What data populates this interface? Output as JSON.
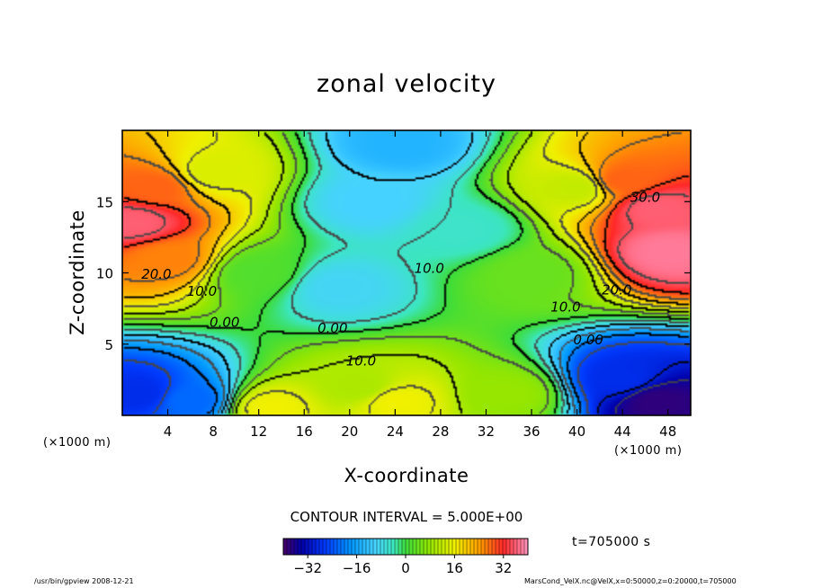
{
  "chart_data": {
    "type": "heatmap",
    "title": "zonal velocity",
    "xlabel": "X-coordinate",
    "ylabel": "Z-coordinate",
    "x_unit_label": "(×1000 m)",
    "z_unit_label": "(×1000 m)",
    "xlim": [
      0,
      50
    ],
    "ylim": [
      0,
      20
    ],
    "x_ticks": [
      "4",
      "8",
      "12",
      "16",
      "20",
      "24",
      "28",
      "32",
      "36",
      "40",
      "44",
      "48"
    ],
    "y_ticks": [
      "5",
      "10",
      "15"
    ],
    "contour_interval_text": "CONTOUR INTERVAL = 5.000E+00",
    "contour_labels": [
      {
        "text": "20.0",
        "x": 3.0,
        "z": 9.6
      },
      {
        "text": "10.0",
        "x": 7.0,
        "z": 8.4
      },
      {
        "text": "0.00",
        "x": 9.0,
        "z": 6.2
      },
      {
        "text": "0.00",
        "x": 18.5,
        "z": 5.8
      },
      {
        "text": "10.0",
        "x": 21.0,
        "z": 3.5
      },
      {
        "text": "10.0",
        "x": 27.0,
        "z": 10.0
      },
      {
        "text": "30.0",
        "x": 46.0,
        "z": 15.0
      },
      {
        "text": "20.0",
        "x": 43.5,
        "z": 8.5
      },
      {
        "text": "10.0",
        "x": 39.0,
        "z": 7.3
      },
      {
        "text": "0.00",
        "x": 41.0,
        "z": 5.0
      }
    ],
    "colorbar": {
      "range": [
        -40,
        40
      ],
      "tick_labels": [
        "−32",
        "−16",
        "0",
        "16",
        "32"
      ],
      "tick_values": [
        -32,
        -16,
        0,
        16,
        32
      ]
    },
    "field_centers": [
      {
        "x": 1,
        "z": 13.5,
        "value": 36
      },
      {
        "x": 3,
        "z": 16,
        "value": 28
      },
      {
        "x": 4,
        "z": 11,
        "value": 26
      },
      {
        "x": 48,
        "z": 11.5,
        "value": 38
      },
      {
        "x": 47,
        "z": 14.5,
        "value": 36
      },
      {
        "x": 44,
        "z": 16.5,
        "value": 28
      },
      {
        "x": 24.5,
        "z": 19,
        "value": -14
      },
      {
        "x": 22,
        "z": 15,
        "value": -10
      },
      {
        "x": 19,
        "z": 9,
        "value": -9
      },
      {
        "x": 30,
        "z": 13,
        "value": -5
      },
      {
        "x": 1.5,
        "z": 1.5,
        "value": -28
      },
      {
        "x": 6,
        "z": 1,
        "value": -22
      },
      {
        "x": 47,
        "z": 1,
        "value": -38
      },
      {
        "x": 44,
        "z": 2.5,
        "value": -28
      },
      {
        "x": 24,
        "z": 1,
        "value": 16
      },
      {
        "x": 21,
        "z": 2,
        "value": 10
      },
      {
        "x": 13,
        "z": 0.5,
        "value": 16
      },
      {
        "x": 34,
        "z": 1.5,
        "value": 8
      },
      {
        "x": 12,
        "z": 10,
        "value": 2
      },
      {
        "x": 36,
        "z": 10,
        "value": 4
      },
      {
        "x": 8,
        "z": 17,
        "value": 14
      },
      {
        "x": 40,
        "z": 16,
        "value": 12
      }
    ],
    "time_label": "t=705000 s"
  },
  "footer": {
    "left": "/usr/bin/gpview   2008-12-21",
    "right": "MarsCond_VelX.nc@VelX,x=0:50000,z=0:20000,t=705000"
  },
  "colors": {
    "frame": "#000000",
    "background": "#ffffff"
  }
}
